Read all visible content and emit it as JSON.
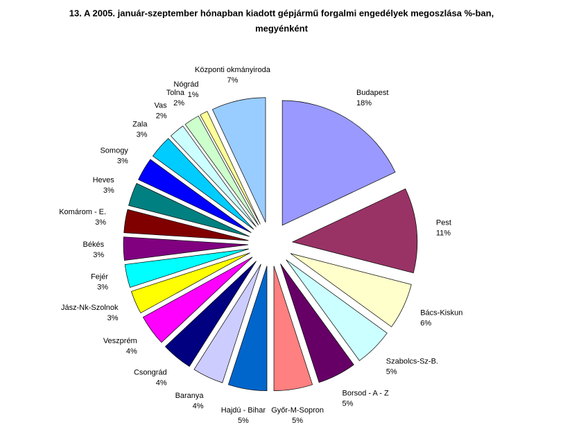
{
  "chart_data": {
    "type": "pie",
    "title": [
      "13. A  2005. január-szeptember hónapban kiadott gépjármű  forgalmi engedélyek megoszlása %-ban,",
      "megyénként"
    ],
    "categories": [
      "Budapest",
      "Pest",
      "Bács-Kiskun",
      "Szabolcs-Sz-B.",
      "Borsod - A - Z",
      "Győr-M-Sopron",
      "Hajdú - Bihar",
      "Baranya",
      "Csongrád",
      "Veszprém",
      "Jász-Nk-Szolnok",
      "Fejér",
      "Békés",
      "Komárom - E.",
      "Heves",
      "Somogy",
      "Zala",
      "Vas",
      "Tolna",
      "Nógrád",
      "Központi okmányiroda"
    ],
    "values": [
      18,
      11,
      6,
      5,
      5,
      5,
      5,
      4,
      4,
      4,
      3,
      3,
      3,
      3,
      3,
      3,
      3,
      2,
      2,
      1,
      7
    ],
    "value_labels": [
      "18%",
      "11%",
      "6%",
      "5%",
      "5%",
      "5%",
      "5%",
      "4%",
      "4%",
      "4%",
      "3%",
      "3%",
      "3%",
      "3%",
      "3%",
      "3%",
      "3%",
      "2%",
      "2%",
      "1%",
      "7%"
    ],
    "colors": [
      "#9999ff",
      "#993366",
      "#ffffcc",
      "#ccffff",
      "#660066",
      "#ff8080",
      "#0066cc",
      "#ccccff",
      "#000080",
      "#ff00ff",
      "#ffff00",
      "#00ffff",
      "#800080",
      "#800000",
      "#008080",
      "#0000ff",
      "#00ccff",
      "#ccffff",
      "#ccffcc",
      "#ffff99",
      "#99ccff"
    ]
  }
}
